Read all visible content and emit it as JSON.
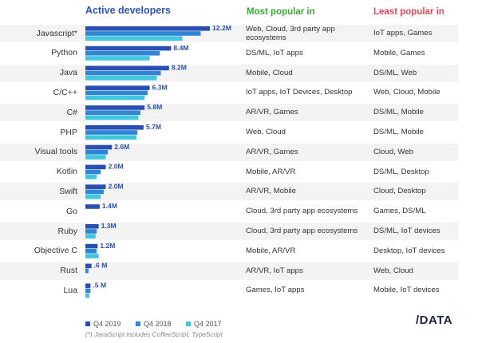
{
  "headers": {
    "active": "Active developers",
    "most": "Most popular in",
    "least": "Least popular in"
  },
  "colors": {
    "q4_2019": "#2a4fb3",
    "q4_2018": "#2f86d6",
    "q4_2017": "#41c6e0",
    "label": "#2a4fb3"
  },
  "chart_data": {
    "type": "bar",
    "orientation": "horizontal",
    "categories": [
      "Javascript*",
      "Python",
      "Java",
      "C/C++",
      "C#",
      "PHP",
      "Visual tools",
      "Kotlin",
      "Swift",
      "Go",
      "Ruby",
      "Objective C",
      "Rust",
      "Lua"
    ],
    "series": [
      {
        "name": "Q4 2019",
        "values": [
          12.2,
          8.4,
          8.2,
          6.3,
          5.8,
          5.7,
          2.6,
          2.0,
          2.0,
          1.4,
          1.3,
          1.2,
          0.6,
          0.5
        ]
      },
      {
        "name": "Q4 2018",
        "values": [
          11.3,
          7.3,
          7.4,
          6.1,
          5.4,
          5.1,
          2.2,
          1.5,
          1.8,
          0.0,
          1.1,
          1.1,
          0.3,
          0.5
        ]
      },
      {
        "name": "Q4 2017",
        "values": [
          9.5,
          6.3,
          7.0,
          5.8,
          5.2,
          5.0,
          2.0,
          1.1,
          1.5,
          0.0,
          1.0,
          1.3,
          0.0,
          0.4
        ]
      }
    ],
    "value_labels": [
      "12.2M",
      "8.4M",
      "8.2M",
      "6.3M",
      "5.8M",
      "5.7M",
      "2.6M",
      "2.0M",
      "2.0M",
      "1.4M",
      "1.3M",
      "1.2M",
      ".6 M",
      ".5 M"
    ],
    "xlim": [
      0,
      12.2
    ],
    "legend": [
      "Q4 2019",
      "Q4 2018",
      "Q4 2017"
    ],
    "legend_position": "bottom-left"
  },
  "table": {
    "most_popular": [
      "Web, Cloud, 3rd party app ecosystems",
      "DS/ML, IoT apps",
      "Mobile, Cloud",
      "IoT apps, IoT Devices, Desktop",
      "AR/VR, Games",
      "Web, Cloud",
      "AR/VR, Games",
      "Mobile, AR/VR",
      "AR/VR, Mobile",
      "Cloud, 3rd party app ecosystems",
      "Cloud, 3rd party app ecosystems",
      "Mobile, AR/VR",
      "AR/VR, IoT apps",
      "Games, IoT apps"
    ],
    "least_popular": [
      "IoT apps, Games",
      "Mobile, Games",
      "DS/ML, Web",
      "Web, Cloud, Mobile",
      "DS/ML, Mobile",
      "DS/ML, Mobile",
      "Cloud, Web",
      "DS/ML, Desktop",
      "Cloud, Desktop",
      "Games, DS/ML",
      "DS/ML, IoT devices",
      "Desktop, IoT devices",
      "Web, Cloud",
      "Mobile, IoT devices"
    ]
  },
  "footnote": "(*) JavaScript includes CoffeeScript, TypeScript",
  "logo": "/DATA"
}
